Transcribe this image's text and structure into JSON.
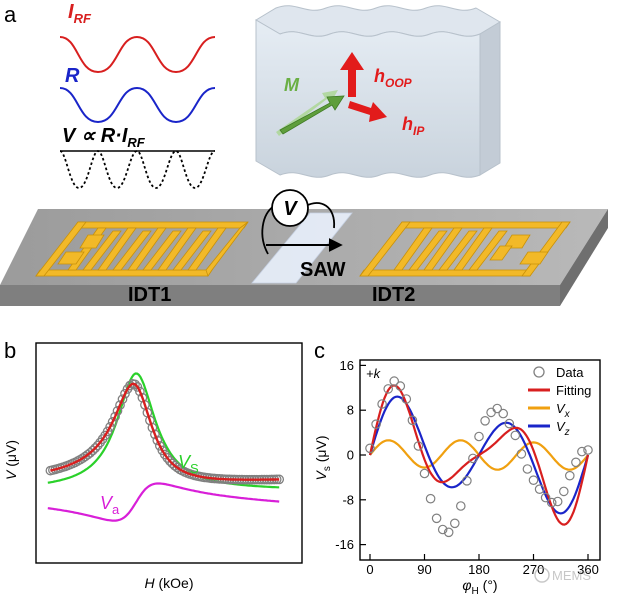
{
  "panel_a": {
    "label": "a",
    "I_RF": "I",
    "I_RF_sub": "RF",
    "R": "R",
    "V_prop_main": "V ∝ R·I",
    "V_prop_sub": "RF",
    "M": "M",
    "h_oop": "h",
    "h_oop_sub": "OOP",
    "h_ip": "h",
    "h_ip_sub": "IP",
    "voltmeter": "V",
    "saw": "SAW",
    "idt1": "IDT1",
    "idt2": "IDT2"
  },
  "panel_b": {
    "label": "b",
    "ylabel_var": "V",
    "ylabel_unit": " (μV)",
    "xlabel_var": "H",
    "xlabel_unit": " (kOe)",
    "vs_var": "V",
    "vs_sub": "S",
    "va_var": "V",
    "va_sub": "a"
  },
  "panel_c": {
    "label": "c",
    "annotation": "+k",
    "ylabel_var": "V",
    "ylabel_sub": "s",
    "ylabel_unit": " (μV)",
    "xlabel_var": "φ",
    "xlabel_sub": "H",
    "xlabel_unit": " (°)",
    "watermark": "MEMS"
  },
  "colors": {
    "red": "#d81f1f",
    "blue": "#1a25c9",
    "green": "#2ad12a",
    "magenta": "#d81fd8",
    "orange": "#f0a010",
    "gold": "#f2b928",
    "gray_data": "#808080"
  },
  "chart_data": [
    {
      "type": "scatter",
      "panel": "b",
      "xlabel": "H (kOe)",
      "ylabel": "V (μV)",
      "ticks": "none",
      "series": [
        {
          "name": "Data",
          "marker": "circle",
          "color": "#808080"
        },
        {
          "name": "Fit",
          "color": "#d81f1f"
        },
        {
          "name": "Vs",
          "color": "#2ad12a"
        },
        {
          "name": "Va",
          "color": "#d81fd8"
        }
      ]
    },
    {
      "type": "line",
      "panel": "c",
      "xlabel": "φH (°)",
      "ylabel": "Vs (μV)",
      "xlim": [
        -10,
        375
      ],
      "ylim": [
        -17,
        17
      ],
      "xticks": [
        0,
        90,
        180,
        270,
        360
      ],
      "yticks": [
        16,
        8,
        0,
        -8,
        -16
      ],
      "legend": "top-right",
      "series": [
        {
          "name": "Data",
          "marker": "circle",
          "color": "#808080",
          "x": [
            0,
            10,
            20,
            30,
            40,
            50,
            60,
            70,
            80,
            90,
            100,
            110,
            120,
            130,
            140,
            150,
            160,
            170,
            180,
            190,
            200,
            210,
            220,
            230,
            240,
            250,
            260,
            270,
            280,
            290,
            300,
            310,
            320,
            330,
            340,
            350,
            360
          ],
          "y": [
            1.2,
            5.5,
            9.1,
            11.8,
            13.2,
            12.3,
            10,
            6.2,
            1.6,
            -3.3,
            -7.8,
            -11.3,
            -13.3,
            -13.8,
            -12.2,
            -9.1,
            -4.6,
            -0.6,
            3.3,
            6.1,
            7.6,
            8.3,
            7.4,
            5.6,
            3.5,
            0.2,
            -2.5,
            -4.5,
            -6.1,
            -7.6,
            -8.5,
            -8.3,
            -6.5,
            -3.7,
            -1.3,
            0.6,
            0.9
          ]
        },
        {
          "name": "Fitting",
          "color": "#d81f1f",
          "x": [
            0,
            360
          ]
        },
        {
          "name": "Vx",
          "color": "#f0a010",
          "x": [
            0,
            360
          ]
        },
        {
          "name": "Vz",
          "color": "#1a25c9",
          "x": [
            0,
            360
          ]
        }
      ]
    }
  ]
}
